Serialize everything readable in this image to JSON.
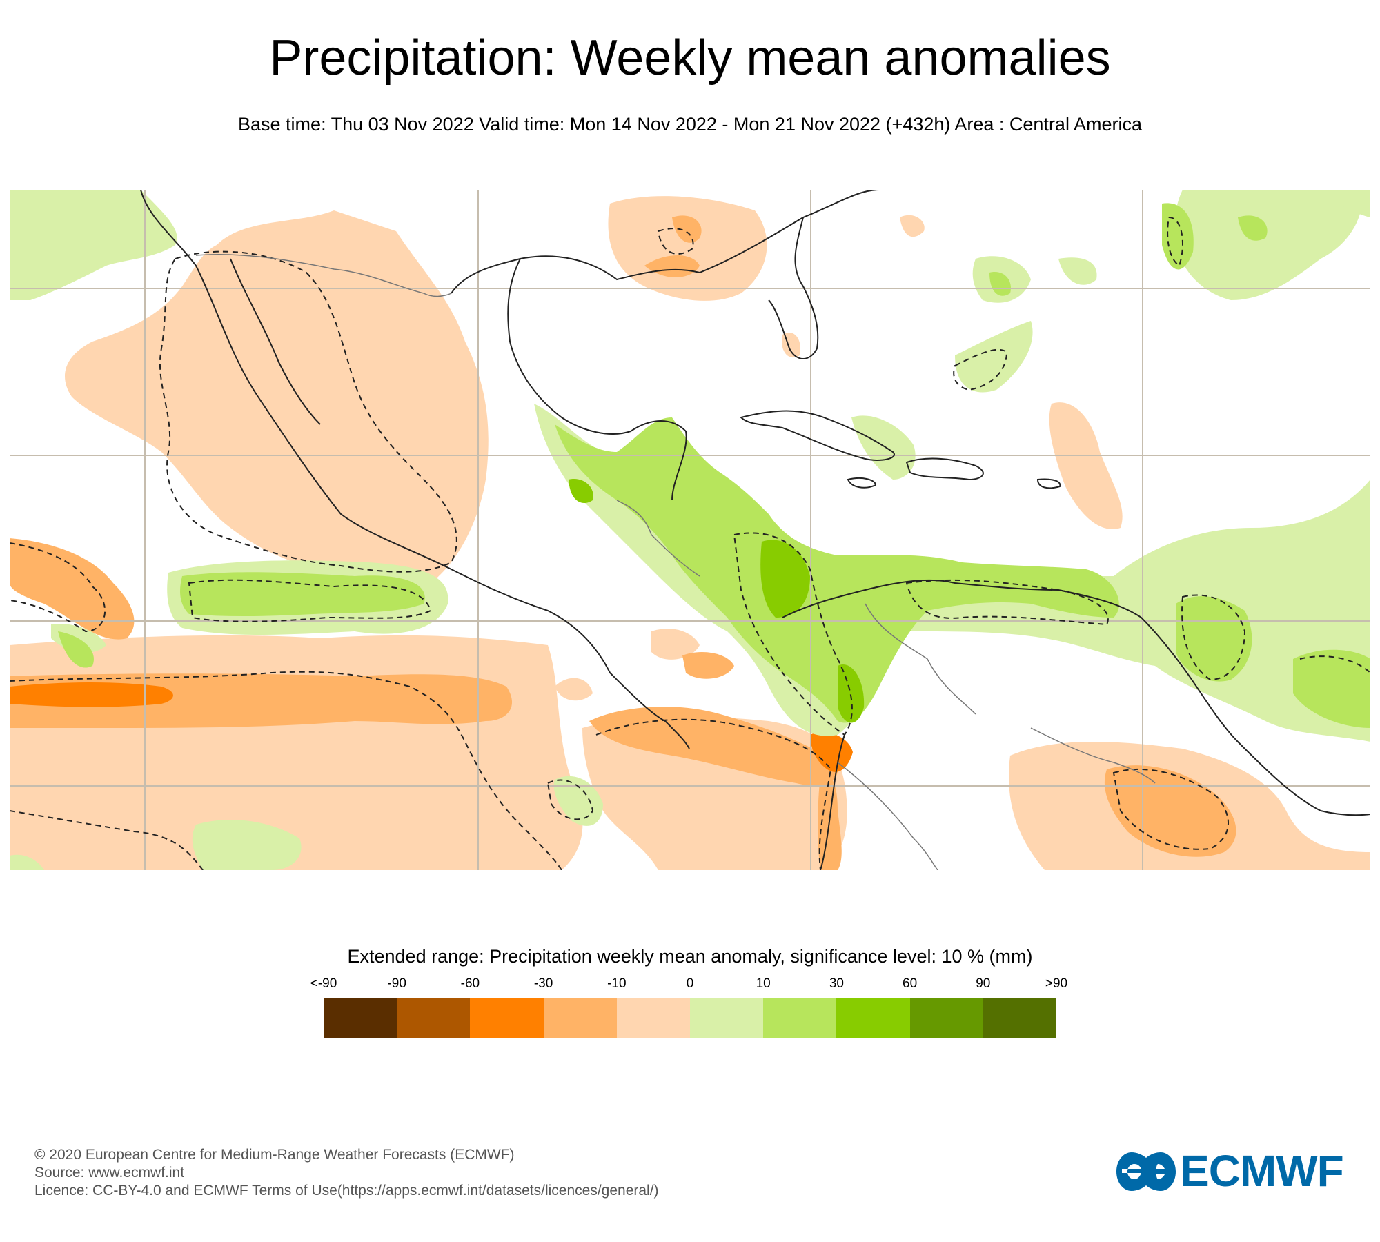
{
  "header": {
    "title": "Precipitation: Weekly mean anomalies",
    "subtitle": "Base time: Thu 03 Nov 2022 Valid time: Mon 14 Nov 2022 - Mon 21 Nov 2022 (+432h) Area : Central America"
  },
  "map": {
    "area": "Central America",
    "colors": {
      "very_wet": "#88cc00",
      "wet": "#b7e55c",
      "slightly_wet": "#d9f0a8",
      "slightly_dry": "#ffd6b0",
      "dry": "#ffb366",
      "very_dry": "#ff8000",
      "gridline": "#c6bdae",
      "coastline": "#222222",
      "border": "#777777",
      "significance_contour": "#222222"
    }
  },
  "legend": {
    "title": "Extended range: Precipitation weekly mean anomaly, significance level: 10 % (mm)",
    "labels": [
      "<-90",
      "-90",
      "-60",
      "-30",
      "-10",
      "0",
      "10",
      "30",
      "60",
      "90",
      ">90"
    ],
    "colors": [
      "#5a2e00",
      "#ad5700",
      "#ff8000",
      "#ffb366",
      "#ffd6b0",
      "#d9f0a8",
      "#b7e55c",
      "#88cc00",
      "#669900",
      "#547000"
    ]
  },
  "footer": {
    "copyright": "© 2020 European Centre for Medium-Range Weather Forecasts (ECMWF)",
    "source": "Source: www.ecmwf.int",
    "licence": "Licence: CC-BY-4.0 and ECMWF Terms of Use(https://apps.ecmwf.int/datasets/licences/general/)"
  },
  "logo": {
    "text": "ECMWF",
    "color": "#0069a8"
  }
}
